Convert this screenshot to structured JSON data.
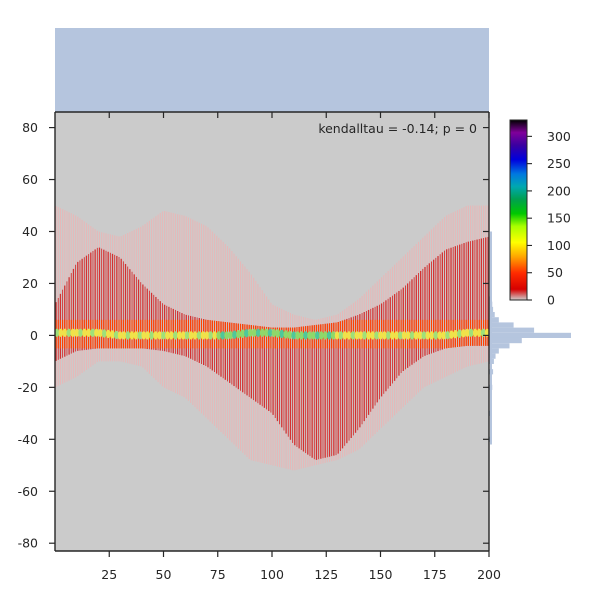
{
  "chart_data": {
    "type": "heatmap",
    "subtype": "joint-hexbin-with-marginals",
    "annotation": "kendalltau = -0.14; p = 0",
    "xlim": [
      0,
      200
    ],
    "ylim": [
      -83,
      86
    ],
    "x_ticks": [
      25,
      50,
      75,
      100,
      125,
      150,
      175,
      200
    ],
    "y_ticks": [
      80,
      60,
      40,
      20,
      0,
      -20,
      -40,
      -60,
      -80
    ],
    "colorbar": {
      "colormap": "nipy_spectral_r",
      "range": [
        0,
        330
      ],
      "ticks": [
        0,
        50,
        100,
        150,
        200,
        250,
        300
      ]
    },
    "density_profile": {
      "description_units": "x in data units; envelope half-widths of the red band in y units",
      "x": [
        0,
        10,
        20,
        30,
        40,
        50,
        60,
        70,
        80,
        90,
        100,
        110,
        120,
        130,
        140,
        150,
        160,
        170,
        180,
        190,
        200
      ],
      "upper_envelope": [
        12,
        28,
        34,
        30,
        20,
        12,
        8,
        6,
        5,
        4,
        3,
        3,
        4,
        5,
        8,
        12,
        18,
        26,
        33,
        36,
        38
      ],
      "lower_envelope": [
        -10,
        -6,
        -5,
        -5,
        -5,
        -6,
        -8,
        -12,
        -18,
        -24,
        -30,
        -42,
        -48,
        -46,
        -36,
        -24,
        -14,
        -8,
        -5,
        -4,
        -4
      ],
      "upper_faint": [
        50,
        46,
        40,
        38,
        42,
        48,
        46,
        42,
        34,
        24,
        12,
        8,
        6,
        8,
        14,
        22,
        30,
        38,
        46,
        50,
        50
      ],
      "lower_faint": [
        -20,
        -16,
        -10,
        -10,
        -12,
        -20,
        -24,
        -32,
        -40,
        -48,
        -50,
        -52,
        -50,
        -48,
        -44,
        -36,
        -28,
        -20,
        -16,
        -12,
        -10
      ],
      "center_line_y": [
        1,
        1,
        1,
        0,
        0,
        0,
        0,
        0,
        0,
        1,
        1,
        0,
        0,
        0,
        0,
        0,
        0,
        0,
        0,
        1,
        1
      ],
      "center_count": 110
    },
    "marginal_x": {
      "type": "uniform-histogram",
      "relative_height": 1.0
    },
    "marginal_y": {
      "type": "histogram",
      "y": [
        14,
        12,
        10,
        8,
        6,
        4,
        2,
        0,
        -2,
        -4,
        -6,
        -8,
        -10,
        -14,
        -20,
        -30,
        -40
      ],
      "relative_length": [
        0.03,
        0.04,
        0.05,
        0.07,
        0.12,
        0.3,
        0.55,
        1.0,
        0.4,
        0.25,
        0.12,
        0.08,
        0.06,
        0.05,
        0.04,
        0.03,
        0.02
      ]
    },
    "colors": {
      "background": "#cbcbcb",
      "marginal": "#b5c5de",
      "axis": "#262626",
      "faint": "#e6b8b8",
      "band": "#d21a1a"
    }
  }
}
